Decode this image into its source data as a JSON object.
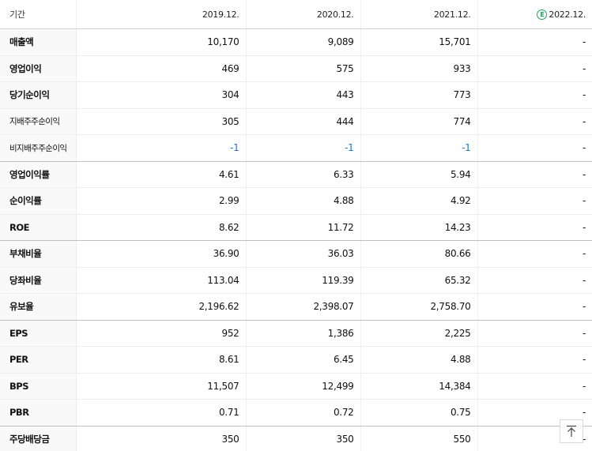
{
  "table": {
    "header": {
      "label": "기간",
      "years": [
        "2019.12.",
        "2020.12.",
        "2021.12."
      ],
      "estimate": {
        "badge": "E",
        "year": "2022.12."
      }
    },
    "rows": [
      {
        "label": "매출액",
        "values": [
          "10,170",
          "9,089",
          "15,701",
          "-"
        ]
      },
      {
        "label": "영업이익",
        "values": [
          "469",
          "575",
          "933",
          "-"
        ]
      },
      {
        "label": "당기순이익",
        "values": [
          "304",
          "443",
          "773",
          "-"
        ]
      },
      {
        "label": "지배주주순이익",
        "values": [
          "305",
          "444",
          "774",
          "-"
        ]
      },
      {
        "label": "비지배주주순이익",
        "values": [
          "-1",
          "-1",
          "-1",
          "-"
        ]
      },
      {
        "label": "영업이익률",
        "values": [
          "4.61",
          "6.33",
          "5.94",
          "-"
        ]
      },
      {
        "label": "순이익률",
        "values": [
          "2.99",
          "4.88",
          "4.92",
          "-"
        ]
      },
      {
        "label": "ROE",
        "values": [
          "8.62",
          "11.72",
          "14.23",
          "-"
        ]
      },
      {
        "label": "부채비율",
        "values": [
          "36.90",
          "36.03",
          "80.66",
          "-"
        ]
      },
      {
        "label": "당좌비율",
        "values": [
          "113.04",
          "119.39",
          "65.32",
          "-"
        ]
      },
      {
        "label": "유보율",
        "values": [
          "2,196.62",
          "2,398.07",
          "2,758.70",
          "-"
        ]
      },
      {
        "label": "EPS",
        "values": [
          "952",
          "1,386",
          "2,225",
          "-"
        ]
      },
      {
        "label": "PER",
        "values": [
          "8.61",
          "6.45",
          "4.88",
          "-"
        ]
      },
      {
        "label": "BPS",
        "values": [
          "11,507",
          "12,499",
          "14,384",
          "-"
        ]
      },
      {
        "label": "PBR",
        "values": [
          "0.71",
          "0.72",
          "0.75",
          "-"
        ]
      },
      {
        "label": "주당배당금",
        "values": [
          "350",
          "350",
          "550",
          "-"
        ]
      }
    ]
  },
  "colors": {
    "negative": "#1a73c8",
    "estimate_badge": "#1aa35a"
  },
  "icons": {
    "scroll_top": "arrow-up-to-top-icon"
  }
}
